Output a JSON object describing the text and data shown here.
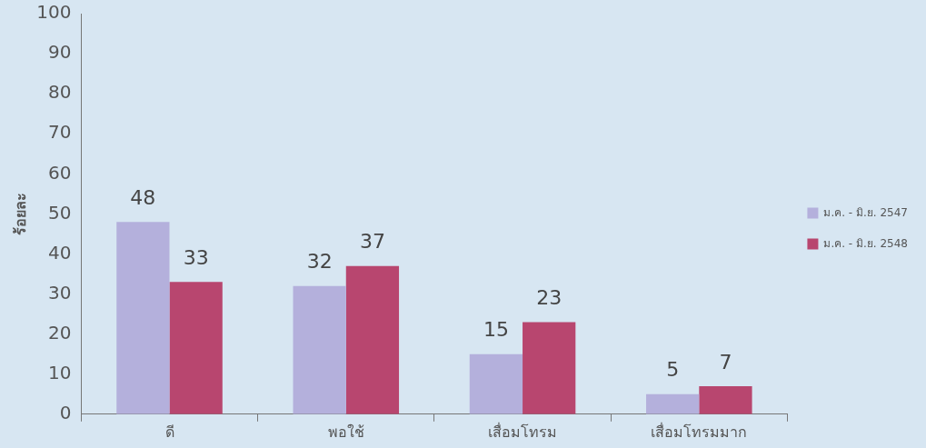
{
  "chart_data": {
    "type": "bar",
    "ylabel": "ร้อยละ",
    "categories": [
      "ดี",
      "พอใช้",
      "เสื่อมโทรม",
      "เสื่อมโทรมมาก"
    ],
    "series": [
      {
        "name": "ม.ค. - มิ.ย. 2547",
        "color": "#b4b0dc",
        "values": [
          48,
          32,
          15,
          5
        ]
      },
      {
        "name": "ม.ค. - มิ.ย. 2548",
        "color": "#b8466f",
        "values": [
          33,
          37,
          23,
          7
        ]
      }
    ],
    "ylim": [
      0,
      100
    ],
    "yticks": [
      0,
      10,
      20,
      30,
      40,
      50,
      60,
      70,
      80,
      90,
      100
    ],
    "grid": false,
    "legend": "right",
    "data_labels": true
  }
}
